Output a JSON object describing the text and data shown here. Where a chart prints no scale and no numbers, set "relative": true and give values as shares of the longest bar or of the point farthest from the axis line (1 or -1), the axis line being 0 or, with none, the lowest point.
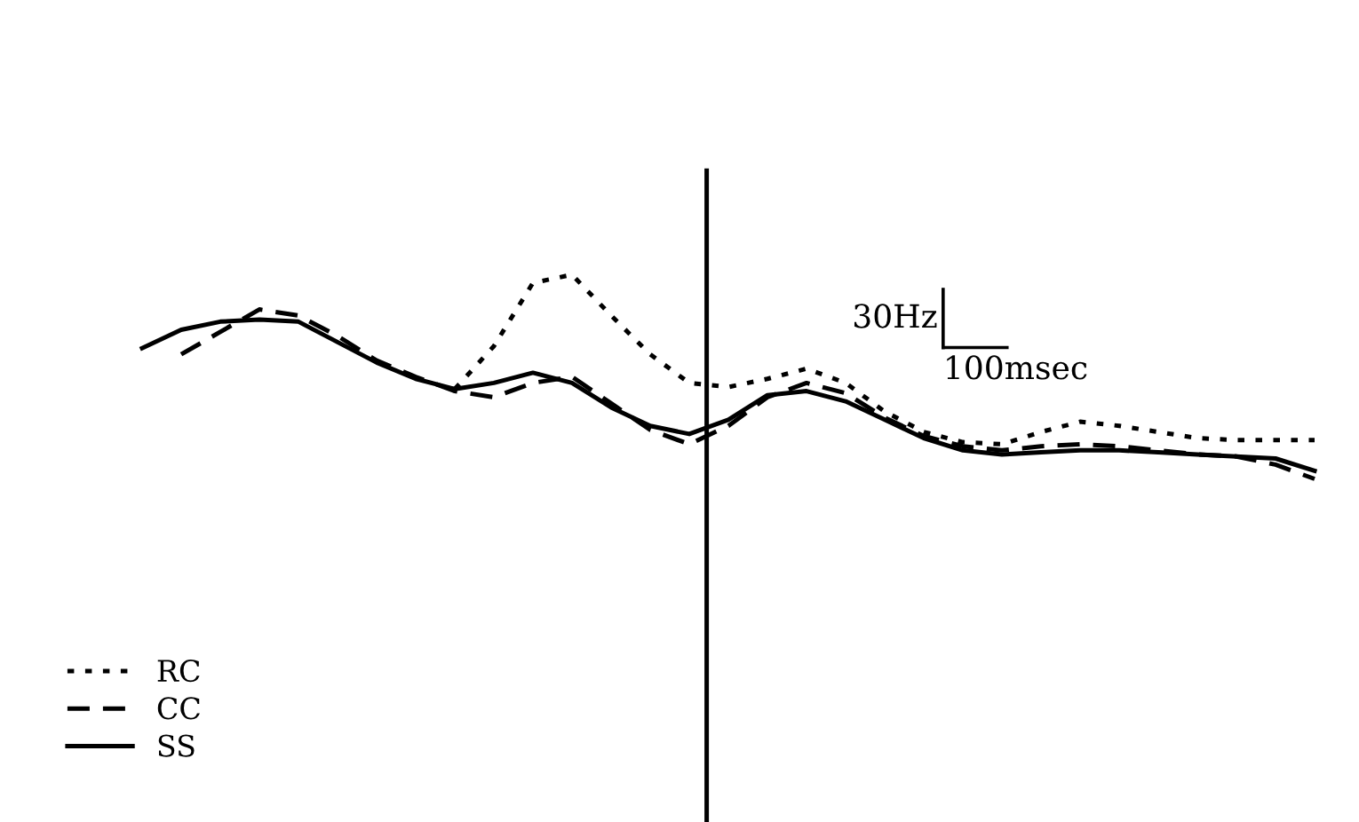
{
  "chart_data": {
    "type": "line",
    "relative": true,
    "legend": "bottom left",
    "categories": [
      null,
      null,
      null,
      null,
      null,
      null,
      null,
      null,
      null,
      null,
      null,
      null,
      null,
      null,
      null,
      null,
      null,
      null,
      null,
      null,
      null,
      null,
      null,
      null,
      null,
      null,
      null,
      null,
      null,
      null,
      null
    ],
    "series": [
      {
        "name": "RC",
        "color": "#000000",
        "line_style": "dotted",
        "values": [
          null,
          null,
          null,
          null,
          null,
          null,
          null,
          null,
          0.44,
          0.65,
          0.96,
          1,
          0.8,
          0.61,
          0.47,
          0.45,
          0.49,
          0.54,
          0.47,
          0.33,
          0.23,
          0.18,
          0.17,
          0.23,
          0.28,
          0.26,
          0.23,
          0.2,
          0.19,
          0.19,
          0.19
        ]
      },
      {
        "name": "CC",
        "color": "#000000",
        "line_style": "dashed",
        "values": [
          null,
          0.61,
          0.72,
          0.83,
          0.8,
          0.7,
          0.58,
          0.5,
          0.43,
          0.4,
          0.47,
          0.5,
          0.37,
          0.24,
          0.17,
          0.26,
          0.4,
          0.47,
          0.42,
          0.3,
          0.21,
          0.16,
          0.14,
          0.16,
          0.17,
          0.16,
          0.14,
          0.12,
          0.11,
          0.07,
          0
        ]
      },
      {
        "name": "SS",
        "color": "#000000",
        "line_style": "solid",
        "values": [
          0.64,
          0.73,
          0.77,
          0.78,
          0.77,
          0.67,
          0.57,
          0.49,
          0.44,
          0.47,
          0.52,
          0.47,
          0.35,
          0.26,
          0.22,
          0.29,
          0.41,
          0.43,
          0.38,
          0.29,
          0.2,
          0.14,
          0.12,
          0.13,
          0.14,
          0.14,
          0.13,
          0.12,
          0.11,
          0.1,
          0.04
        ]
      }
    ],
    "annotations": [
      "30Hz",
      "100msec"
    ]
  }
}
